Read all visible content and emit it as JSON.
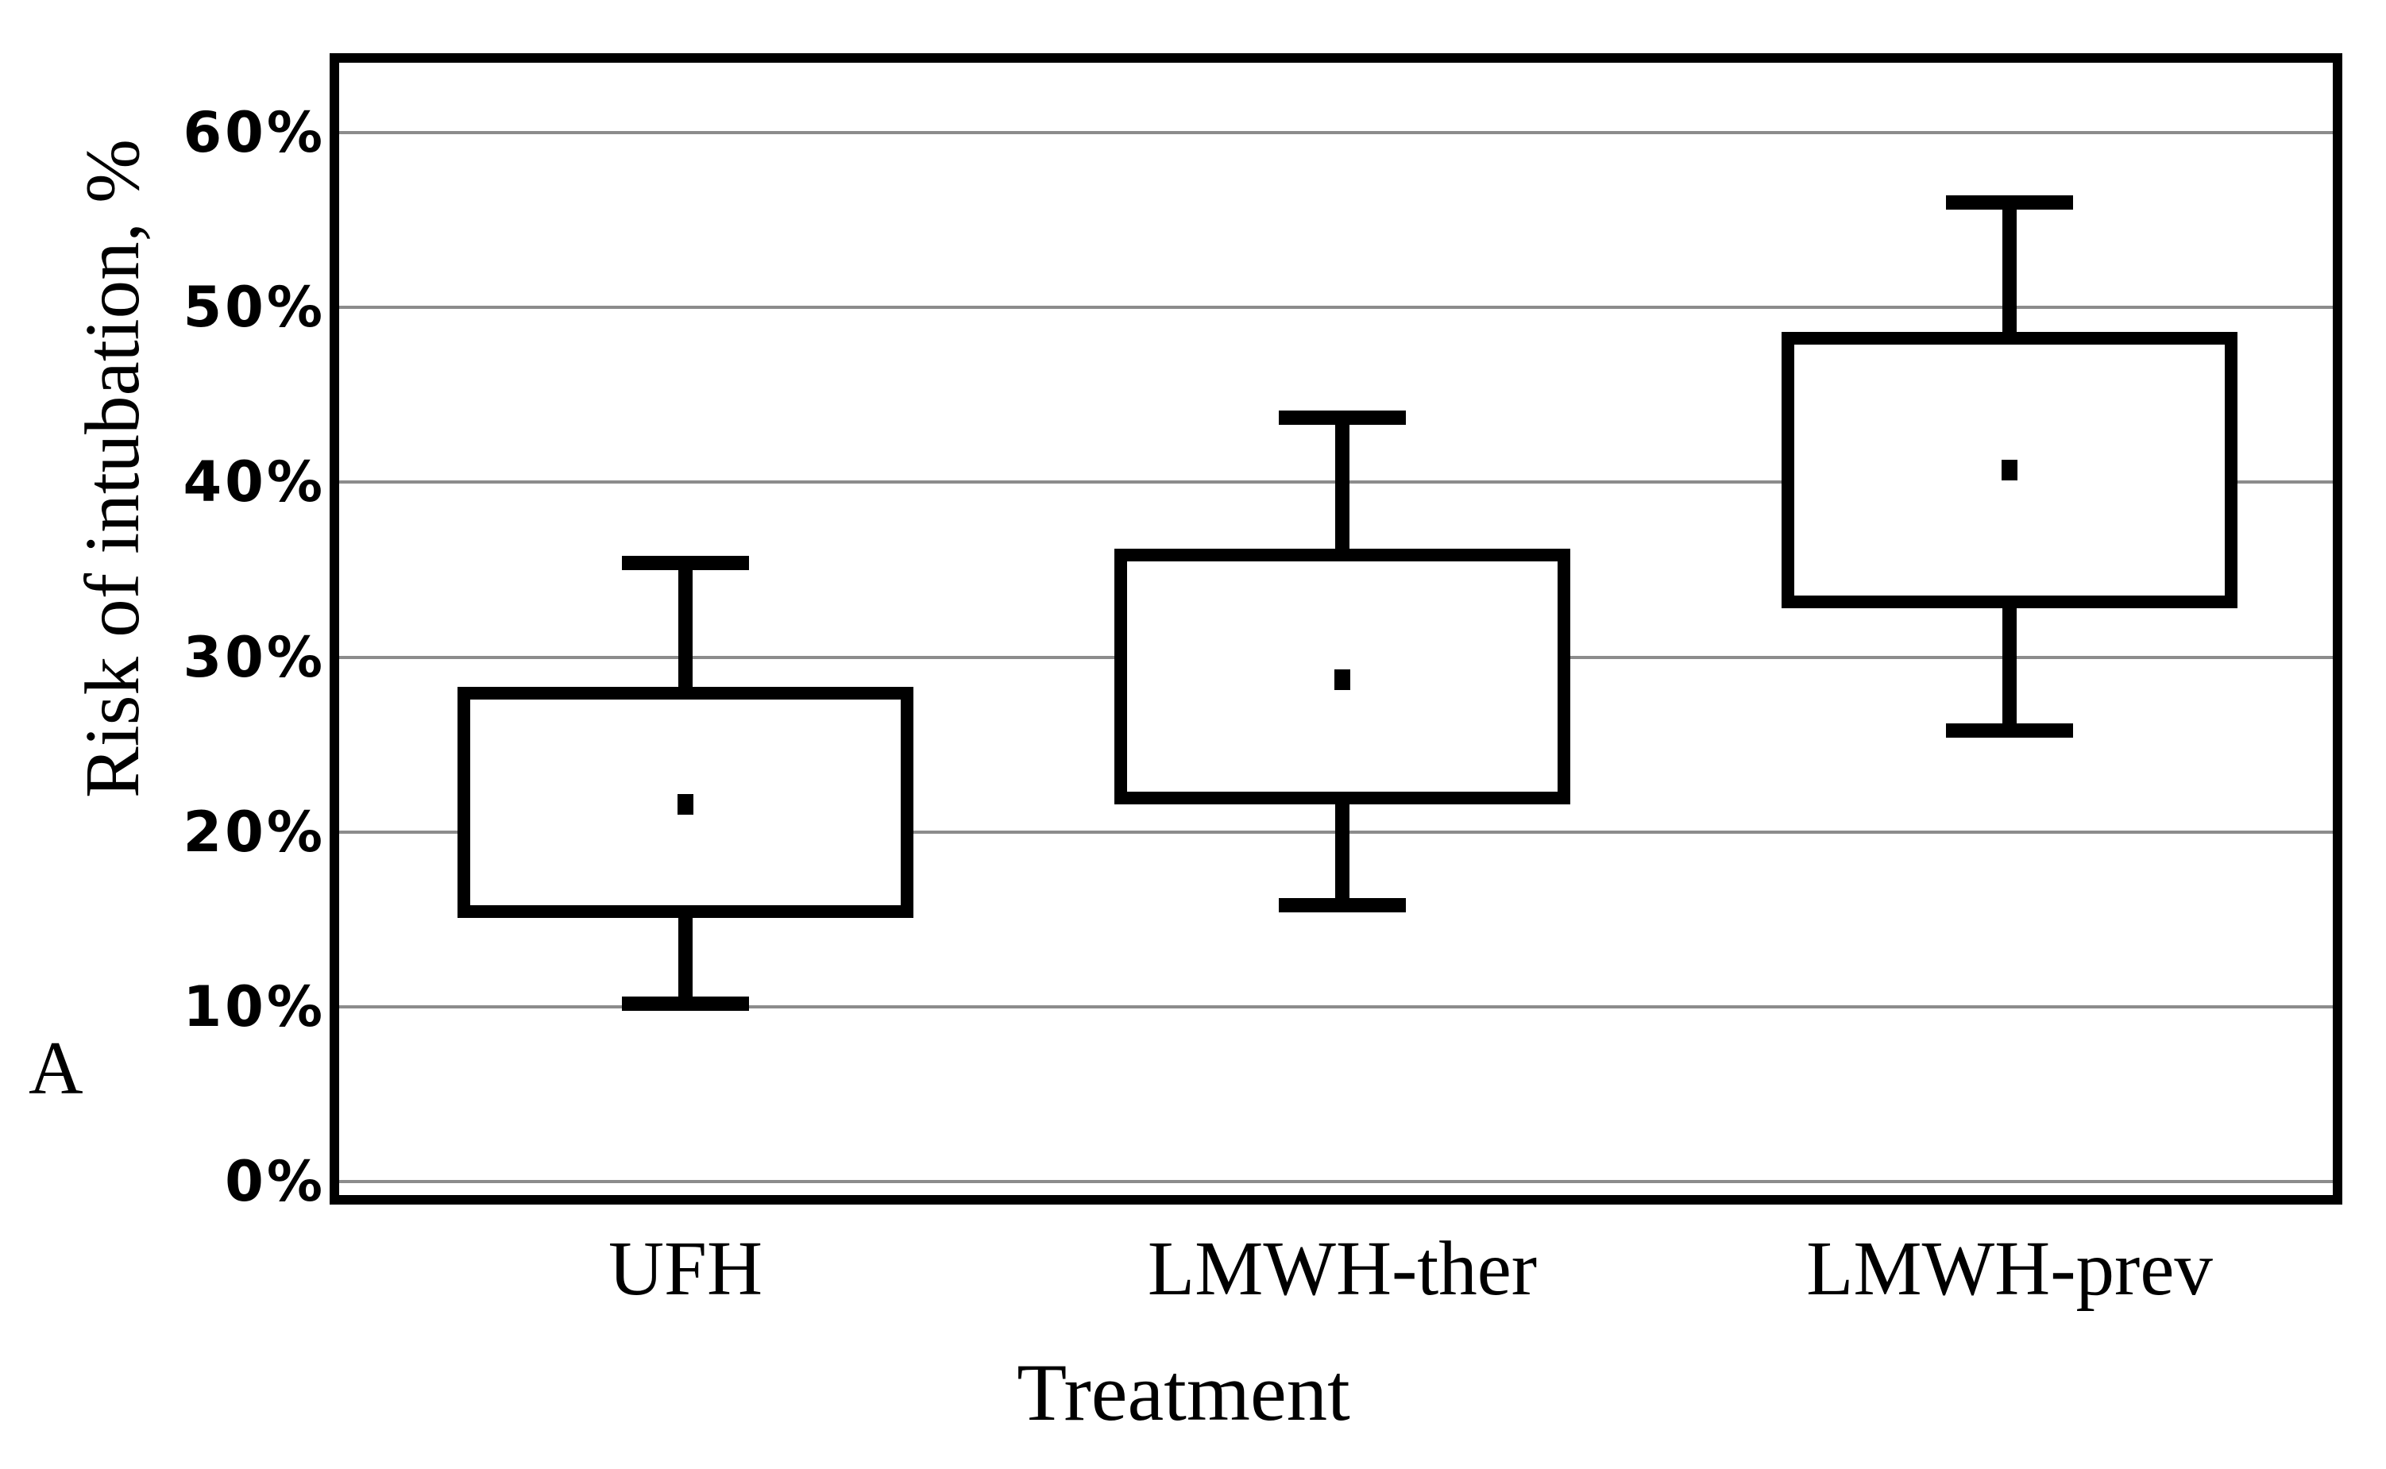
{
  "figure_label": "A",
  "chart_data": {
    "type": "box",
    "title": "",
    "xlabel": "Treatment",
    "ylabel": "Risk of intubation, %",
    "categories": [
      "UFH",
      "LMWH-ther",
      "LMWH-prev"
    ],
    "y_ticks": [
      "0%",
      "10%",
      "20%",
      "30%",
      "40%",
      "50%",
      "60%"
    ],
    "y_tick_values": [
      0,
      10,
      20,
      30,
      40,
      50,
      60
    ],
    "ylim": [
      0,
      64
    ],
    "grid": true,
    "legend": "none",
    "marker": "mean-dot",
    "series": [
      {
        "name": "UFH",
        "whisker_low": 10.2,
        "q1": 15.5,
        "mean": 21.6,
        "q3": 27.9,
        "whisker_high": 35.4
      },
      {
        "name": "LMWH-ther",
        "whisker_low": 15.8,
        "q1": 22.0,
        "mean": 28.7,
        "q3": 35.8,
        "whisker_high": 43.7
      },
      {
        "name": "LMWH-prev",
        "whisker_low": 25.8,
        "q1": 33.2,
        "mean": 40.7,
        "q3": 48.2,
        "whisker_high": 56.0
      }
    ],
    "colors": {
      "box_stroke": "#000000",
      "box_fill": "#ffffff",
      "gridline": "#8c8c8c",
      "background": "#ffffff",
      "text": "#000000"
    }
  }
}
